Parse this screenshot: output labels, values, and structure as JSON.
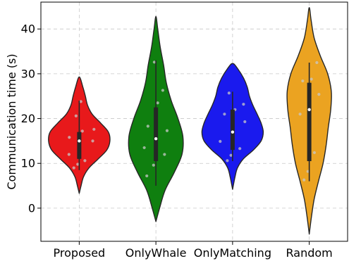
{
  "chart_data": {
    "type": "violin",
    "title": "",
    "xlabel": "",
    "ylabel": "Communication time (s)",
    "ylim": [
      -7.4,
      46.0
    ],
    "yticks": [
      0,
      10,
      20,
      30,
      40
    ],
    "grid": true,
    "categories": [
      "Proposed",
      "OnlyWhale",
      "OnlyMatching",
      "Random"
    ],
    "colors": [
      "#e8191b",
      "#0f7f0f",
      "#1a1aee",
      "#eba321"
    ],
    "series": [
      {
        "category": "Proposed",
        "color": "#e8191b",
        "range": [
          3.3,
          29.3
        ],
        "median": 15.0,
        "q1": 11.0,
        "q3": 17.0,
        "whisker": [
          8.5,
          24.0
        ],
        "density": [
          [
            3.3,
            0.0
          ],
          [
            5,
            0.06
          ],
          [
            7,
            0.14
          ],
          [
            9,
            0.32
          ],
          [
            11,
            0.62
          ],
          [
            13,
            0.9
          ],
          [
            15,
            1.0
          ],
          [
            17,
            0.95
          ],
          [
            19,
            0.7
          ],
          [
            21,
            0.42
          ],
          [
            23,
            0.27
          ],
          [
            25,
            0.2
          ],
          [
            27,
            0.12
          ],
          [
            29.3,
            0.0
          ]
        ],
        "points": [
          9.0,
          9.8,
          10.6,
          12.0,
          13.8,
          15.0,
          15.8,
          17.2,
          17.6,
          20.6,
          23.8
        ]
      },
      {
        "category": "OnlyWhale",
        "color": "#0f7f0f",
        "range": [
          -3.0,
          42.8
        ],
        "median": 15.5,
        "q1": 10.5,
        "q3": 22.5,
        "whisker": [
          5.0,
          33.0
        ],
        "density": [
          [
            -3.0,
            0.0
          ],
          [
            0,
            0.12
          ],
          [
            4,
            0.3
          ],
          [
            8,
            0.6
          ],
          [
            12,
            0.85
          ],
          [
            16,
            0.88
          ],
          [
            20,
            0.72
          ],
          [
            24,
            0.5
          ],
          [
            28,
            0.34
          ],
          [
            32,
            0.25
          ],
          [
            36,
            0.14
          ],
          [
            40,
            0.06
          ],
          [
            42.8,
            0.0
          ]
        ],
        "points": [
          7.2,
          9.6,
          12.0,
          13.5,
          15.5,
          17.3,
          18.3,
          23.5,
          26.3,
          32.6
        ]
      },
      {
        "category": "OnlyMatching",
        "color": "#1a1aee",
        "range": [
          4.2,
          32.3
        ],
        "median": 17.0,
        "q1": 13.0,
        "q3": 22.0,
        "whisker": [
          10.5,
          26.0
        ],
        "density": [
          [
            4.2,
            0.0
          ],
          [
            7,
            0.08
          ],
          [
            9,
            0.16
          ],
          [
            11,
            0.35
          ],
          [
            13,
            0.68
          ],
          [
            15,
            0.93
          ],
          [
            17,
            1.0
          ],
          [
            19,
            0.93
          ],
          [
            21,
            0.8
          ],
          [
            23,
            0.66
          ],
          [
            25,
            0.55
          ],
          [
            27,
            0.48
          ],
          [
            29,
            0.36
          ],
          [
            31,
            0.18
          ],
          [
            32.3,
            0.0
          ]
        ],
        "points": [
          10.6,
          11.8,
          13.3,
          14.9,
          17.5,
          19.3,
          21.0,
          22.0,
          23.2,
          25.7
        ]
      },
      {
        "category": "Random",
        "color": "#eba321",
        "range": [
          -5.8,
          44.8
        ],
        "median": 22.0,
        "q1": 10.5,
        "q3": 28.0,
        "whisker": [
          6.0,
          32.5
        ],
        "density": [
          [
            -5.8,
            0.0
          ],
          [
            -2,
            0.07
          ],
          [
            2,
            0.16
          ],
          [
            6,
            0.3
          ],
          [
            10,
            0.45
          ],
          [
            14,
            0.55
          ],
          [
            18,
            0.62
          ],
          [
            22,
            0.7
          ],
          [
            26,
            0.72
          ],
          [
            30,
            0.6
          ],
          [
            34,
            0.36
          ],
          [
            38,
            0.16
          ],
          [
            42,
            0.06
          ],
          [
            44.8,
            0.0
          ]
        ],
        "points": [
          6.3,
          8.2,
          12.4,
          21.0,
          23.7,
          25.4,
          28.4,
          28.8,
          32.5
        ]
      }
    ]
  }
}
